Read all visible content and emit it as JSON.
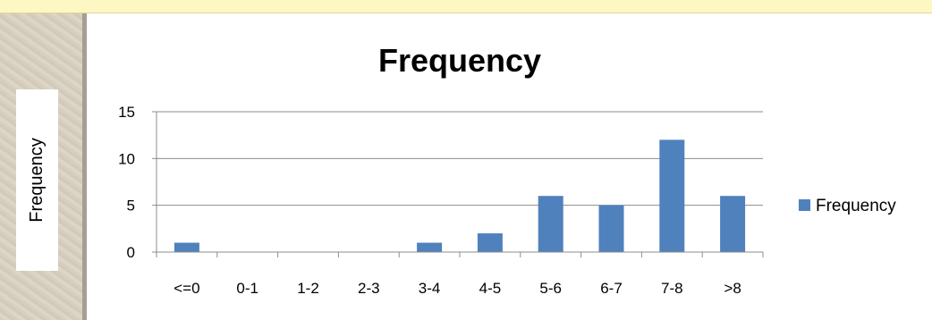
{
  "chart_data": {
    "type": "bar",
    "title": "Frequency",
    "ylabel": "Frequency",
    "xlabel": "",
    "categories": [
      "<=0",
      "0-1",
      "1-2",
      "2-3",
      "3-4",
      "4-5",
      "5-6",
      "6-7",
      "7-8",
      ">8"
    ],
    "series": [
      {
        "name": "Frequency",
        "values": [
          1,
          0,
          0,
          0,
          1,
          2,
          6,
          5,
          12,
          6
        ],
        "color": "#4f81bd"
      }
    ],
    "ylim": [
      0,
      15
    ],
    "yticks": [
      0,
      5,
      10,
      15
    ],
    "grid": true,
    "legend_position": "right"
  }
}
